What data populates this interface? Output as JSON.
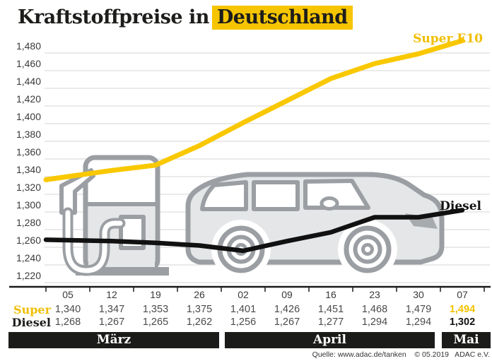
{
  "title": {
    "prefix": "Kraftstoffpreise in",
    "highlight": "Deutschland"
  },
  "colors": {
    "accent_yellow": "#f6c500",
    "line_super": "#f9c800",
    "line_diesel": "#111111",
    "illustration_stroke": "#9b9fa3",
    "illustration_fill": "#e4e6e8",
    "month_bar_bg": "#1b1b19"
  },
  "chart_data": {
    "type": "line",
    "title": "Kraftstoffpreise in Deutschland",
    "x_dates": [
      "05",
      "12",
      "19",
      "26",
      "02",
      "09",
      "16",
      "23",
      "30",
      "07"
    ],
    "series": [
      {
        "name": "Super E10",
        "color": "#f9c800",
        "values": [
          1.34,
          1.347,
          1.353,
          1.375,
          1.401,
          1.426,
          1.451,
          1.468,
          1.479,
          1.494
        ]
      },
      {
        "name": "Diesel",
        "color": "#111111",
        "values": [
          1.268,
          1.267,
          1.265,
          1.262,
          1.256,
          1.267,
          1.277,
          1.294,
          1.294,
          1.302
        ]
      }
    ],
    "ylim": [
      1.22,
      1.48
    ],
    "ytick_step": 0.02,
    "yticks": [
      "1,480",
      "1,460",
      "1,440",
      "1,420",
      "1,400",
      "1,380",
      "1,360",
      "1,340",
      "1,320",
      "1,300",
      "1,280",
      "1,260",
      "1,240",
      "1,220"
    ],
    "grid": true,
    "legend_position": "end-of-line",
    "months_axis": [
      {
        "label": "März",
        "columns": 4
      },
      {
        "label": "April",
        "columns": 5
      },
      {
        "label": "Mai",
        "columns": 1
      }
    ]
  },
  "table": {
    "row_labels": {
      "super": "Super",
      "diesel": "Diesel"
    },
    "dates": [
      "05",
      "12",
      "19",
      "26",
      "02",
      "09",
      "16",
      "23",
      "30",
      "07"
    ],
    "super": [
      "1,340",
      "1,347",
      "1,353",
      "1,375",
      "1,401",
      "1,426",
      "1,451",
      "1,468",
      "1,479",
      "1,494"
    ],
    "diesel": [
      "1,268",
      "1,267",
      "1,265",
      "1,262",
      "1,256",
      "1,267",
      "1,277",
      "1,294",
      "1,294",
      "1,302"
    ]
  },
  "months": [
    {
      "label": "März"
    },
    {
      "label": "April"
    },
    {
      "label": "Mai"
    }
  ],
  "source": "Quelle: www.adac.de/tanken    © 05.2019   ADAC e.V."
}
